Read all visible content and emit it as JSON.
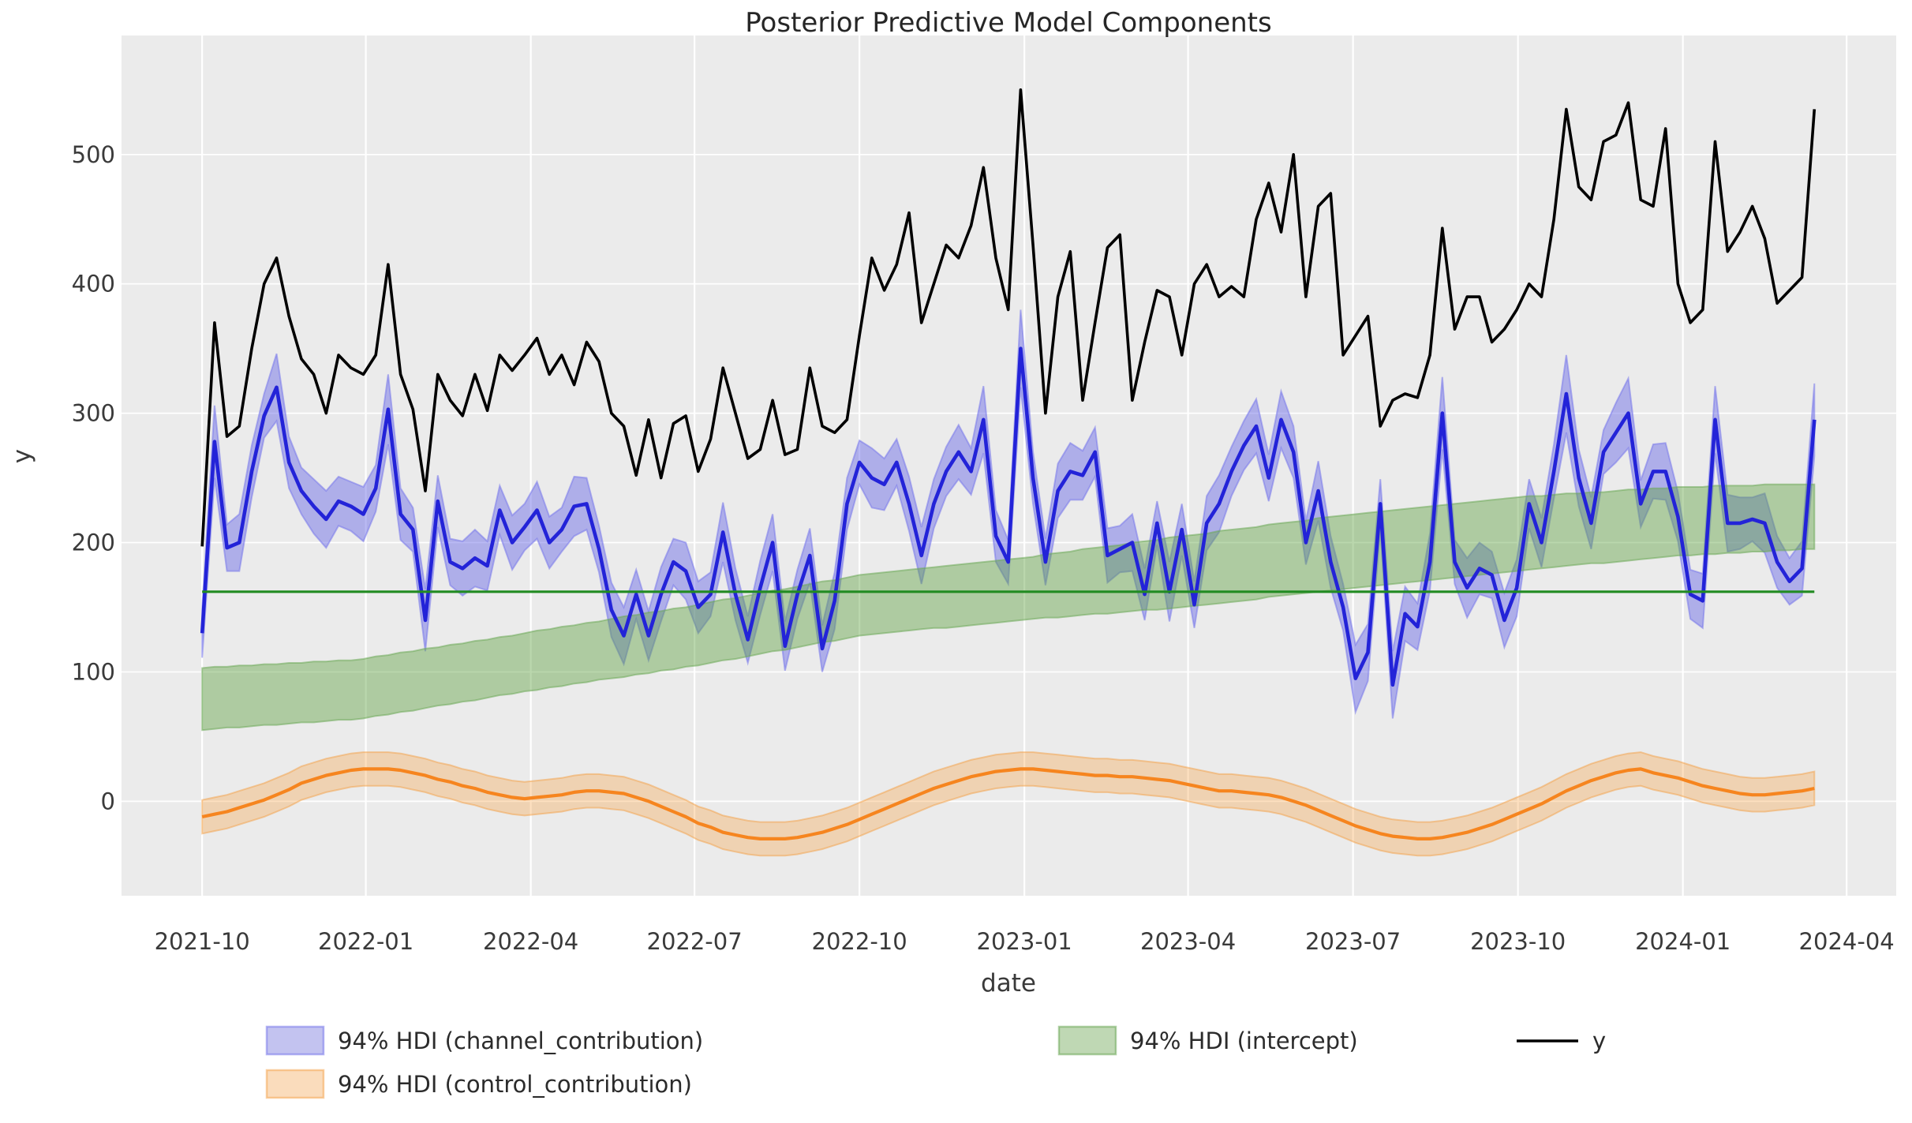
{
  "title": "Posterior Predictive Model Components",
  "axes": {
    "xlabel": "date",
    "ylabel": "y",
    "xticks": [
      {
        "label": "2021-10",
        "week": 0
      },
      {
        "label": "2022-01",
        "week": 13.2
      },
      {
        "label": "2022-04",
        "week": 26.5
      },
      {
        "label": "2022-07",
        "week": 39.7
      },
      {
        "label": "2022-10",
        "week": 53.0
      },
      {
        "label": "2023-01",
        "week": 66.3
      },
      {
        "label": "2023-04",
        "week": 79.5
      },
      {
        "label": "2023-07",
        "week": 92.8
      },
      {
        "label": "2023-10",
        "week": 106.1
      },
      {
        "label": "2024-01",
        "week": 119.4
      },
      {
        "label": "2024-04",
        "week": 132.6
      }
    ],
    "yticks": [
      0,
      100,
      200,
      300,
      400,
      500
    ],
    "xlim_weeks": [
      -6.5,
      136.6
    ],
    "ylim": [
      -73,
      592
    ]
  },
  "style_colors": {
    "plot_bg": "#EBEBEB",
    "grid": "#FFFFFF",
    "y_line": "#000000",
    "channel_line": "#2323D8",
    "channel_band_fill": "rgba(100,100,230,0.45)",
    "channel_band_edge": "rgba(120,120,235,0.55)",
    "intercept_line": "#228B22",
    "intercept_band_fill": "rgba(90,160,60,0.42)",
    "intercept_band_edge": "rgba(110,170,90,0.55)",
    "control_line": "#F6851F",
    "control_band_fill": "rgba(250,160,60,0.32)",
    "control_band_edge": "rgba(243,160,70,0.5)",
    "legend_channel_patch": "#C3C3F0",
    "legend_intercept_patch": "#BFD8B4",
    "legend_control_patch": "#FADCBC"
  },
  "legend": {
    "row1": [
      {
        "id": "channel",
        "type": "patch",
        "label": "94% HDI (channel_contribution)"
      },
      {
        "id": "intercept",
        "type": "patch",
        "label": "94% HDI (intercept)"
      },
      {
        "id": "y",
        "type": "line",
        "label": "y"
      }
    ],
    "row2": [
      {
        "id": "control",
        "type": "patch",
        "label": "94% HDI (control_contribution)"
      }
    ]
  },
  "chart_data": {
    "type": "line",
    "title": "Posterior Predictive Model Components",
    "xlabel": "date",
    "ylabel": "y",
    "x_unit": "weekly index, week 0 = 2021-10, last point just before 2024-04",
    "n_points": 131,
    "grid": true,
    "legend_position": "below-axes",
    "series": [
      {
        "name": "y",
        "kind": "line",
        "values": [
          197,
          370,
          282,
          290,
          350,
          400,
          420,
          375,
          342,
          330,
          300,
          345,
          335,
          330,
          345,
          415,
          330,
          303,
          240,
          330,
          310,
          298,
          330,
          302,
          345,
          333,
          345,
          358,
          330,
          345,
          322,
          355,
          340,
          300,
          290,
          252,
          295,
          250,
          292,
          298,
          255,
          280,
          335,
          300,
          265,
          272,
          310,
          268,
          272,
          335,
          290,
          285,
          295,
          360,
          420,
          395,
          415,
          455,
          370,
          400,
          430,
          420,
          445,
          490,
          420,
          380,
          550,
          430,
          300,
          390,
          425,
          310,
          370,
          428,
          438,
          310,
          355,
          395,
          390,
          345,
          400,
          415,
          390,
          398,
          390,
          450,
          478,
          440,
          500,
          390,
          460,
          470,
          345,
          360,
          375,
          290,
          310,
          315,
          312,
          345,
          443,
          365,
          390,
          390,
          355,
          365,
          380,
          400,
          390,
          450,
          535,
          475,
          465,
          510,
          515,
          540,
          465,
          460,
          520,
          400,
          370,
          380,
          510,
          425,
          440,
          460,
          435,
          385,
          395,
          405,
          535
        ]
      },
      {
        "name": "channel_contribution",
        "kind": "line+hdi",
        "hdi_label": "94% HDI (channel_contribution)",
        "mean": [
          130,
          278,
          196,
          200,
          255,
          298,
          320,
          262,
          240,
          228,
          218,
          232,
          228,
          222,
          242,
          303,
          222,
          210,
          140,
          232,
          185,
          180,
          188,
          182,
          225,
          200,
          212,
          225,
          200,
          210,
          228,
          230,
          195,
          148,
          128,
          160,
          128,
          160,
          185,
          178,
          150,
          160,
          208,
          160,
          125,
          165,
          200,
          120,
          160,
          190,
          118,
          155,
          230,
          262,
          250,
          245,
          262,
          230,
          190,
          230,
          255,
          270,
          255,
          295,
          205,
          185,
          350,
          250,
          185,
          240,
          255,
          252,
          270,
          190,
          195,
          200,
          160,
          215,
          162,
          210,
          152,
          215,
          230,
          255,
          275,
          290,
          250,
          295,
          270,
          200,
          240,
          185,
          150,
          95,
          115,
          230,
          90,
          145,
          135,
          185,
          300,
          185,
          165,
          180,
          175,
          140,
          165,
          230,
          200,
          255,
          315,
          250,
          215,
          270,
          285,
          300,
          230,
          255,
          255,
          220,
          160,
          155,
          295,
          215,
          215,
          218,
          215,
          185,
          170,
          180,
          295
        ],
        "hdi_half": [
          19,
          28,
          18,
          22,
          20,
          17,
          26,
          20,
          18,
          21,
          22,
          19,
          19,
          21,
          18,
          27,
          20,
          17,
          24,
          20,
          18,
          21,
          22,
          19,
          19,
          21,
          18,
          22,
          20,
          17,
          23,
          20,
          18,
          21,
          22,
          19,
          19,
          21,
          18,
          22,
          20,
          17,
          23,
          20,
          18,
          21,
          22,
          19,
          19,
          21,
          18,
          22,
          20,
          17,
          23,
          20,
          18,
          21,
          22,
          19,
          19,
          21,
          18,
          26,
          20,
          17,
          30,
          20,
          18,
          21,
          22,
          19,
          19,
          21,
          18,
          22,
          20,
          17,
          23,
          20,
          18,
          21,
          22,
          19,
          19,
          21,
          18,
          22,
          20,
          17,
          23,
          20,
          18,
          26,
          22,
          19,
          26,
          21,
          18,
          22,
          28,
          17,
          23,
          20,
          18,
          21,
          22,
          19,
          19,
          21,
          30,
          22,
          20,
          17,
          23,
          27,
          18,
          21,
          22,
          19,
          19,
          21,
          26,
          22,
          20,
          17,
          23,
          20,
          18,
          21,
          28
        ]
      },
      {
        "name": "intercept",
        "kind": "line+hdi",
        "hdi_label": "94% HDI (intercept)",
        "line_value": 162,
        "hdi_lo": [
          55,
          56,
          57,
          57,
          58,
          59,
          59,
          60,
          61,
          61,
          62,
          63,
          63,
          64,
          66,
          67,
          69,
          70,
          72,
          74,
          75,
          77,
          78,
          80,
          82,
          83,
          85,
          86,
          88,
          89,
          91,
          92,
          94,
          95,
          96,
          98,
          99,
          101,
          102,
          104,
          105,
          107,
          109,
          110,
          112,
          114,
          116,
          117,
          119,
          121,
          123,
          124,
          126,
          128,
          129,
          130,
          131,
          132,
          133,
          134,
          134,
          135,
          136,
          137,
          138,
          139,
          140,
          141,
          142,
          142,
          143,
          144,
          145,
          145,
          146,
          147,
          148,
          148,
          149,
          150,
          151,
          152,
          153,
          154,
          155,
          156,
          158,
          159,
          160,
          161,
          162,
          163,
          164,
          165,
          166,
          167,
          168,
          169,
          170,
          171,
          172,
          173,
          174,
          175,
          176,
          177,
          178,
          179,
          180,
          181,
          182,
          183,
          184,
          184,
          185,
          186,
          187,
          188,
          189,
          190,
          190,
          191,
          191,
          192,
          192,
          193,
          193,
          194,
          194,
          195,
          195
        ],
        "hdi_hi": [
          103,
          104,
          104,
          105,
          105,
          106,
          106,
          107,
          107,
          108,
          108,
          109,
          109,
          110,
          112,
          113,
          115,
          116,
          118,
          119,
          121,
          122,
          124,
          125,
          127,
          128,
          130,
          132,
          133,
          135,
          136,
          138,
          139,
          141,
          143,
          144,
          146,
          147,
          149,
          150,
          152,
          154,
          156,
          157,
          159,
          161,
          163,
          164,
          166,
          168,
          170,
          171,
          173,
          175,
          176,
          177,
          178,
          179,
          180,
          181,
          182,
          183,
          184,
          185,
          186,
          187,
          188,
          189,
          191,
          192,
          193,
          195,
          196,
          197,
          198,
          200,
          201,
          202,
          204,
          205,
          206,
          207,
          209,
          210,
          211,
          212,
          214,
          215,
          216,
          217,
          219,
          220,
          221,
          222,
          223,
          224,
          225,
          226,
          227,
          228,
          229,
          230,
          231,
          232,
          233,
          234,
          235,
          236,
          236,
          237,
          238,
          238,
          239,
          239,
          240,
          241,
          241,
          242,
          242,
          243,
          243,
          243,
          244,
          244,
          244,
          244,
          245,
          245,
          245,
          245,
          245
        ]
      },
      {
        "name": "control_contribution",
        "kind": "line+hdi",
        "hdi_label": "94% HDI (control_contribution)",
        "mean": [
          -12,
          -10,
          -8,
          -5,
          -2,
          1,
          5,
          9,
          14,
          17,
          20,
          22,
          24,
          25,
          25,
          25,
          24,
          22,
          20,
          17,
          15,
          12,
          10,
          7,
          5,
          3,
          2,
          3,
          4,
          5,
          7,
          8,
          8,
          7,
          6,
          3,
          0,
          -4,
          -8,
          -12,
          -17,
          -20,
          -24,
          -26,
          -28,
          -29,
          -29,
          -29,
          -28,
          -26,
          -24,
          -21,
          -18,
          -14,
          -10,
          -6,
          -2,
          2,
          6,
          10,
          13,
          16,
          19,
          21,
          23,
          24,
          25,
          25,
          24,
          23,
          22,
          21,
          20,
          20,
          19,
          19,
          18,
          17,
          16,
          14,
          12,
          10,
          8,
          8,
          7,
          6,
          5,
          3,
          0,
          -3,
          -7,
          -11,
          -15,
          -19,
          -22,
          -25,
          -27,
          -28,
          -29,
          -29,
          -28,
          -26,
          -24,
          -21,
          -18,
          -14,
          -10,
          -6,
          -2,
          3,
          8,
          12,
          16,
          19,
          22,
          24,
          25,
          22,
          20,
          18,
          15,
          12,
          10,
          8,
          6,
          5,
          5,
          6,
          7,
          8,
          10
        ],
        "hdi_half_uniform": 13
      }
    ]
  }
}
